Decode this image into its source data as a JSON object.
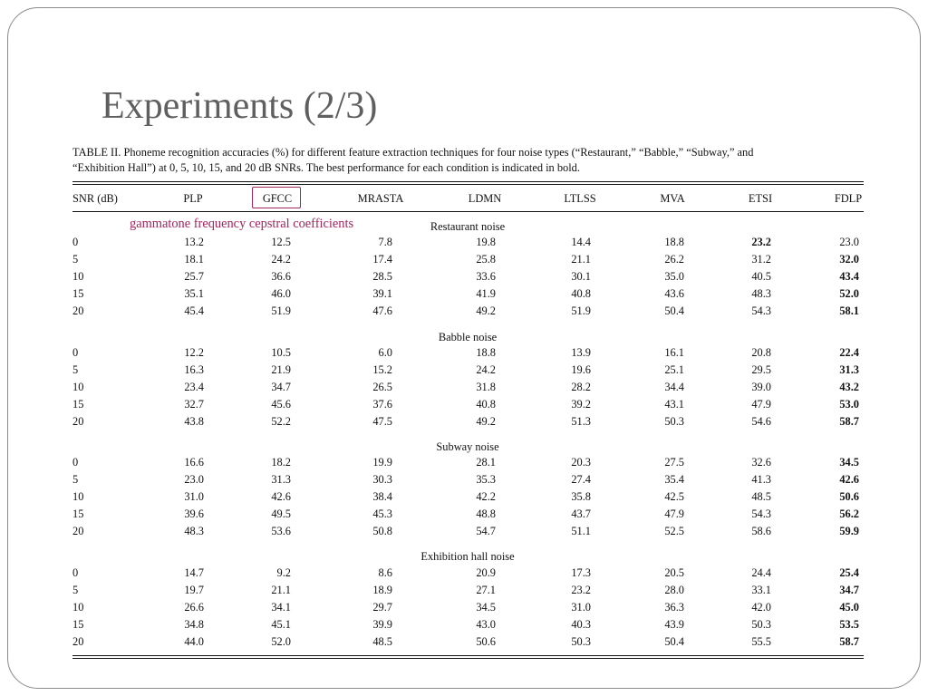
{
  "slide": {
    "title": "Experiments (2/3)",
    "caption_lines": [
      "TABLE II.  Phoneme recognition accuracies (%) for different feature extraction techniques for four noise types (“Restaurant,” “Babble,” “Subway,” and",
      "“Exhibition Hall”) at 0, 5, 10, 15, and 20 dB SNRs. The best performance for each condition is indicated in bold."
    ],
    "annotation": "gammatone frequency cepstral coefficients",
    "accent_color": "#a3245d"
  },
  "table": {
    "headers": [
      "SNR (dB)",
      "PLP",
      "GFCC",
      "MRASTA",
      "LDMN",
      "LTLSS",
      "MVA",
      "ETSI",
      "FDLP"
    ],
    "sections": [
      {
        "label": "Restaurant noise",
        "rows": [
          {
            "snr": "0",
            "values": [
              "13.2",
              "12.5",
              "7.8",
              "19.8",
              "14.4",
              "18.8",
              "23.2",
              "23.0"
            ],
            "bold": 6
          },
          {
            "snr": "5",
            "values": [
              "18.1",
              "24.2",
              "17.4",
              "25.8",
              "21.1",
              "26.2",
              "31.2",
              "32.0"
            ],
            "bold": 7
          },
          {
            "snr": "10",
            "values": [
              "25.7",
              "36.6",
              "28.5",
              "33.6",
              "30.1",
              "35.0",
              "40.5",
              "43.4"
            ],
            "bold": 7
          },
          {
            "snr": "15",
            "values": [
              "35.1",
              "46.0",
              "39.1",
              "41.9",
              "40.8",
              "43.6",
              "48.3",
              "52.0"
            ],
            "bold": 7
          },
          {
            "snr": "20",
            "values": [
              "45.4",
              "51.9",
              "47.6",
              "49.2",
              "51.9",
              "50.4",
              "54.3",
              "58.1"
            ],
            "bold": 7
          }
        ]
      },
      {
        "label": "Babble noise",
        "rows": [
          {
            "snr": "0",
            "values": [
              "12.2",
              "10.5",
              "6.0",
              "18.8",
              "13.9",
              "16.1",
              "20.8",
              "22.4"
            ],
            "bold": 7
          },
          {
            "snr": "5",
            "values": [
              "16.3",
              "21.9",
              "15.2",
              "24.2",
              "19.6",
              "25.1",
              "29.5",
              "31.3"
            ],
            "bold": 7
          },
          {
            "snr": "10",
            "values": [
              "23.4",
              "34.7",
              "26.5",
              "31.8",
              "28.2",
              "34.4",
              "39.0",
              "43.2"
            ],
            "bold": 7
          },
          {
            "snr": "15",
            "values": [
              "32.7",
              "45.6",
              "37.6",
              "40.8",
              "39.2",
              "43.1",
              "47.9",
              "53.0"
            ],
            "bold": 7
          },
          {
            "snr": "20",
            "values": [
              "43.8",
              "52.2",
              "47.5",
              "49.2",
              "51.3",
              "50.3",
              "54.6",
              "58.7"
            ],
            "bold": 7
          }
        ]
      },
      {
        "label": "Subway noise",
        "rows": [
          {
            "snr": "0",
            "values": [
              "16.6",
              "18.2",
              "19.9",
              "28.1",
              "20.3",
              "27.5",
              "32.6",
              "34.5"
            ],
            "bold": 7
          },
          {
            "snr": "5",
            "values": [
              "23.0",
              "31.3",
              "30.3",
              "35.3",
              "27.4",
              "35.4",
              "41.3",
              "42.6"
            ],
            "bold": 7
          },
          {
            "snr": "10",
            "values": [
              "31.0",
              "42.6",
              "38.4",
              "42.2",
              "35.8",
              "42.5",
              "48.5",
              "50.6"
            ],
            "bold": 7
          },
          {
            "snr": "15",
            "values": [
              "39.6",
              "49.5",
              "45.3",
              "48.8",
              "43.7",
              "47.9",
              "54.3",
              "56.2"
            ],
            "bold": 7
          },
          {
            "snr": "20",
            "values": [
              "48.3",
              "53.6",
              "50.8",
              "54.7",
              "51.1",
              "52.5",
              "58.6",
              "59.9"
            ],
            "bold": 7
          }
        ]
      },
      {
        "label": "Exhibition hall noise",
        "rows": [
          {
            "snr": "0",
            "values": [
              "14.7",
              "9.2",
              "8.6",
              "20.9",
              "17.3",
              "20.5",
              "24.4",
              "25.4"
            ],
            "bold": 7
          },
          {
            "snr": "5",
            "values": [
              "19.7",
              "21.1",
              "18.9",
              "27.1",
              "23.2",
              "28.0",
              "33.1",
              "34.7"
            ],
            "bold": 7
          },
          {
            "snr": "10",
            "values": [
              "26.6",
              "34.1",
              "29.7",
              "34.5",
              "31.0",
              "36.3",
              "42.0",
              "45.0"
            ],
            "bold": 7
          },
          {
            "snr": "15",
            "values": [
              "34.8",
              "45.1",
              "39.9",
              "43.0",
              "40.3",
              "43.9",
              "50.3",
              "53.5"
            ],
            "bold": 7
          },
          {
            "snr": "20",
            "values": [
              "44.0",
              "52.0",
              "48.5",
              "50.6",
              "50.3",
              "50.4",
              "55.5",
              "58.7"
            ],
            "bold": 7
          }
        ]
      }
    ]
  }
}
